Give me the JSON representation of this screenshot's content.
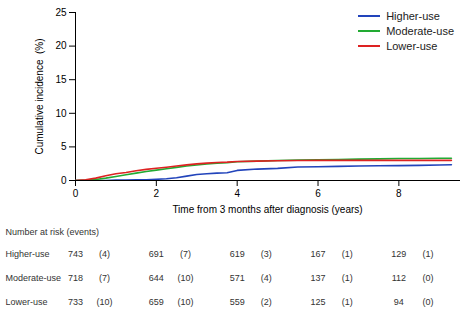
{
  "chart_data": {
    "type": "line",
    "xlabel": "Time from 3 months after diagnosis (years)",
    "ylabel": "Cumulative incidence  (%)",
    "xlim": [
      0,
      9.5
    ],
    "ylim": [
      0,
      25
    ],
    "xticks": [
      0,
      2,
      4,
      6,
      8
    ],
    "yticks": [
      0,
      5,
      10,
      15,
      20,
      25
    ],
    "grid": false,
    "legend": "upper right",
    "x": [
      0,
      0.25,
      0.5,
      0.75,
      1.0,
      1.25,
      1.5,
      1.75,
      2.0,
      2.25,
      2.5,
      2.75,
      3.0,
      3.25,
      3.5,
      3.75,
      4.0,
      4.5,
      5.0,
      5.5,
      6.0,
      6.5,
      7.0,
      7.5,
      8.0,
      8.5,
      9.0,
      9.3
    ],
    "series": [
      {
        "name": "Higher-use",
        "color": "#2244bb",
        "values": [
          0,
          0.0,
          0.0,
          0.0,
          0.05,
          0.08,
          0.1,
          0.12,
          0.18,
          0.25,
          0.4,
          0.65,
          0.9,
          1.0,
          1.1,
          1.15,
          1.5,
          1.7,
          1.8,
          2.0,
          2.05,
          2.1,
          2.15,
          2.2,
          2.22,
          2.25,
          2.3,
          2.35
        ]
      },
      {
        "name": "Moderate-use",
        "color": "#22aa33",
        "values": [
          0,
          0.05,
          0.15,
          0.35,
          0.6,
          0.85,
          1.1,
          1.35,
          1.55,
          1.75,
          1.95,
          2.15,
          2.3,
          2.45,
          2.58,
          2.65,
          2.78,
          2.88,
          2.97,
          3.03,
          3.08,
          3.12,
          3.18,
          3.22,
          3.27,
          3.28,
          3.3,
          3.32
        ]
      },
      {
        "name": "Lower-use",
        "color": "#dd2222",
        "values": [
          0,
          0.12,
          0.35,
          0.7,
          1.0,
          1.2,
          1.45,
          1.65,
          1.82,
          1.97,
          2.15,
          2.32,
          2.47,
          2.58,
          2.68,
          2.73,
          2.82,
          2.88,
          2.93,
          2.97,
          2.99,
          3.0,
          3.0,
          3.0,
          3.0,
          3.0,
          3.0,
          3.0
        ]
      }
    ],
    "table": {
      "header": "Number at risk (events)",
      "rows": [
        {
          "label": "Higher-use",
          "at_risk": [
            743,
            691,
            619,
            167,
            129
          ],
          "events": [
            "(4)",
            "(7)",
            "(3)",
            "(1)",
            "(1)"
          ]
        },
        {
          "label": "Moderate-use",
          "at_risk": [
            718,
            644,
            571,
            137,
            112
          ],
          "events": [
            "(7)",
            "(10)",
            "(4)",
            "(1)",
            "(0)"
          ]
        },
        {
          "label": "Lower-use",
          "at_risk": [
            733,
            659,
            559,
            125,
            94
          ],
          "events": [
            "(10)",
            "(10)",
            "(2)",
            "(1)",
            "(0)"
          ]
        }
      ]
    }
  }
}
